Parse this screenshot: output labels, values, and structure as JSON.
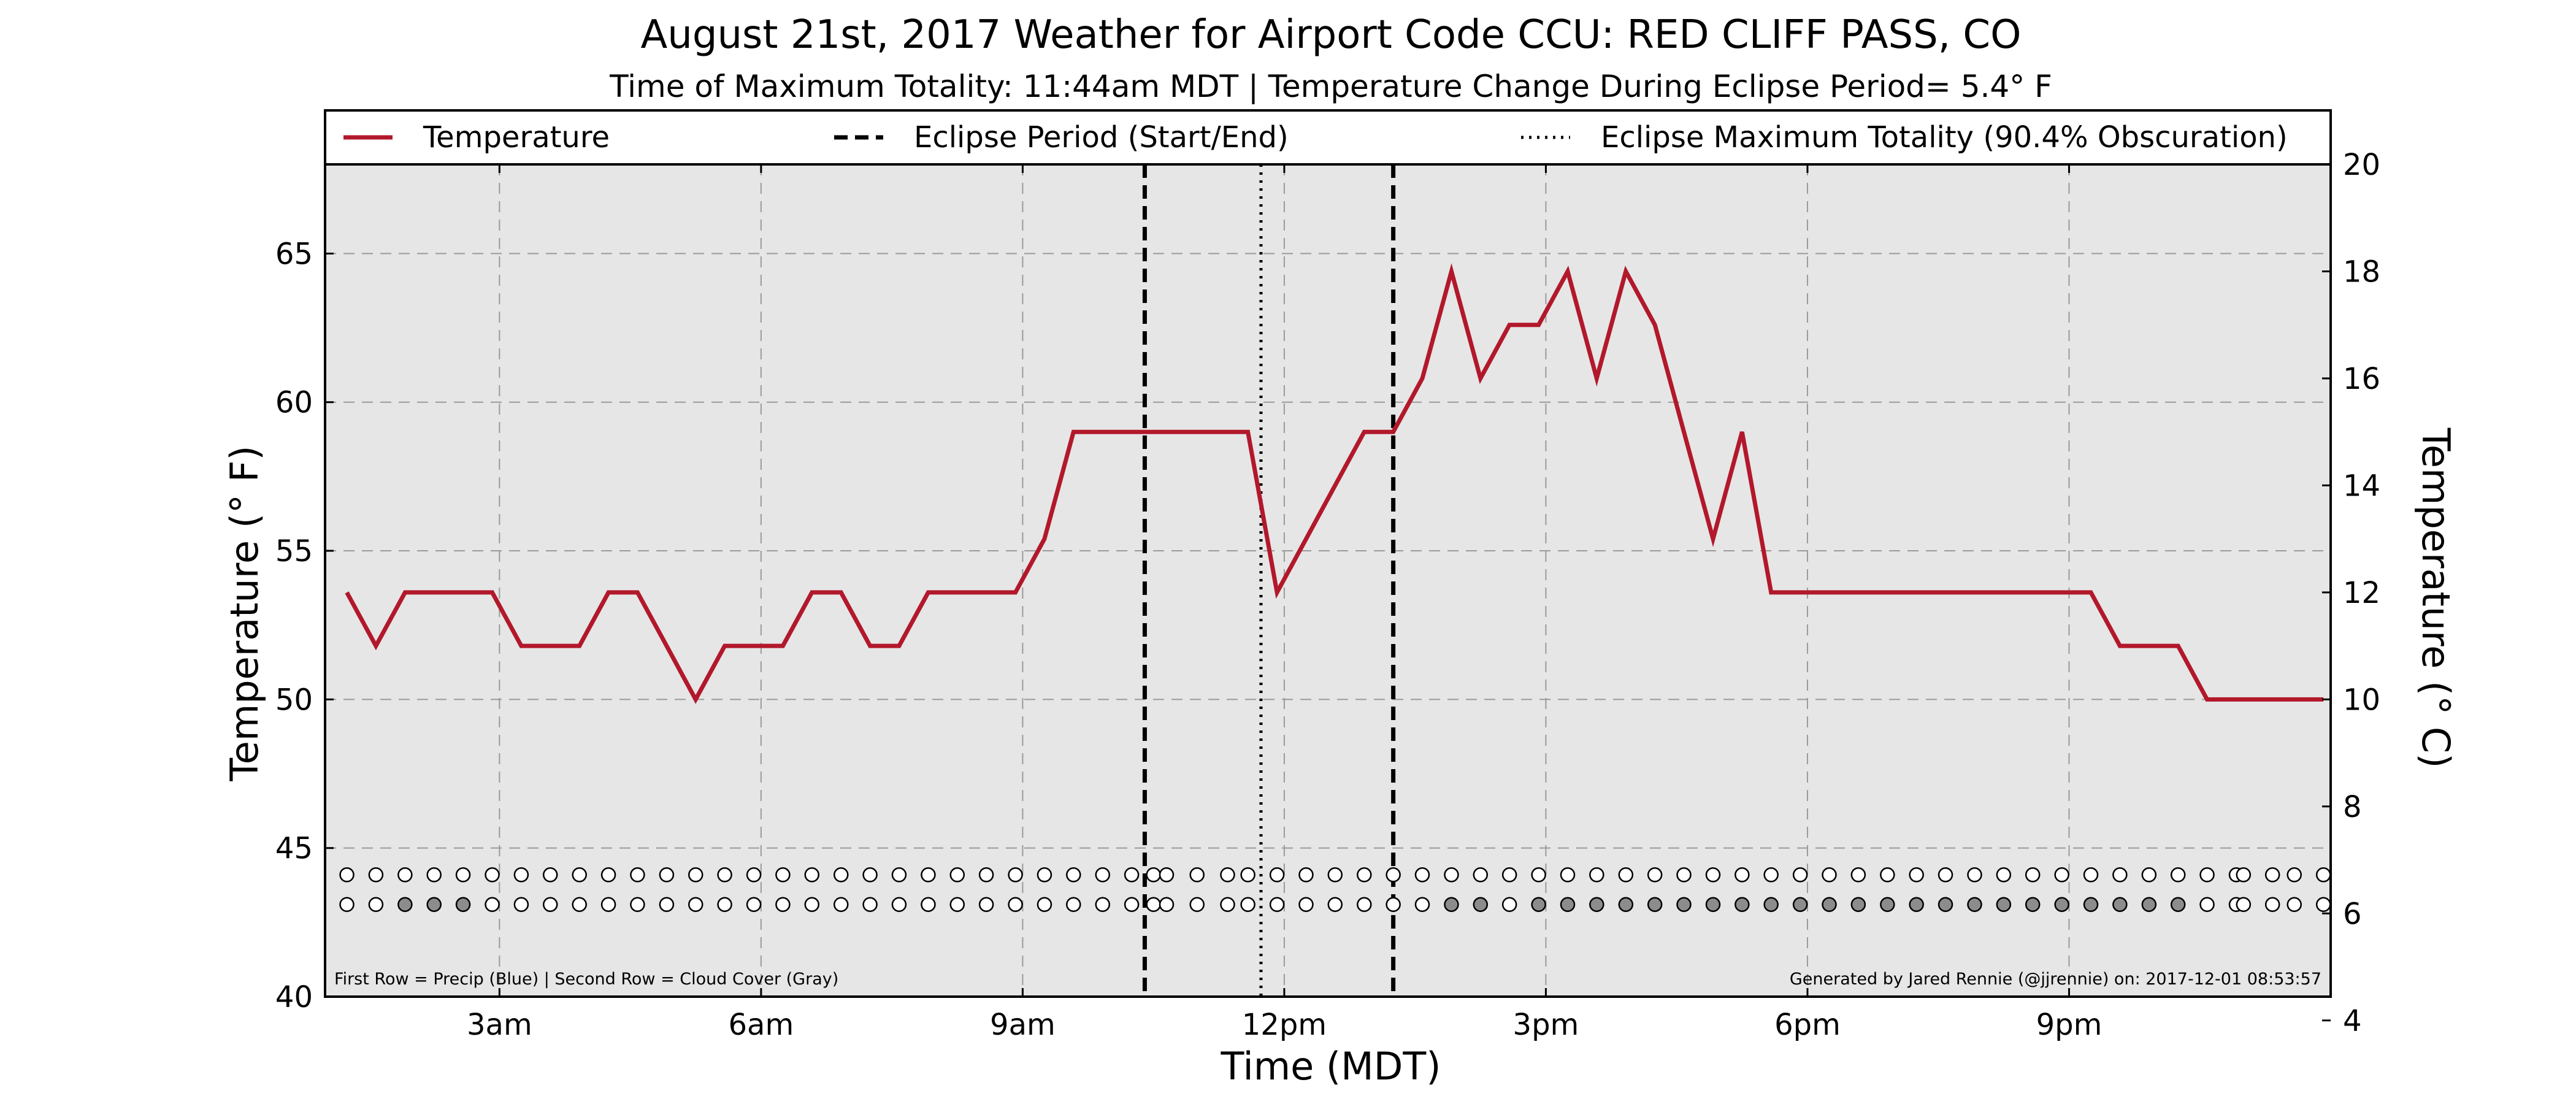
{
  "chart_data": {
    "type": "line",
    "title": "August 21st, 2017 Weather for Airport Code CCU: RED CLIFF PASS, CO",
    "subtitle": "Time of Maximum Totality: 11:44am MDT | Temperature Change During Eclipse Period= 5.4° F",
    "xlabel": "Time (MDT)",
    "ylabel": "Temperature (° F)",
    "ylabel_right": "Temperature (° C)",
    "xlim": [
      1.0,
      24.0
    ],
    "ylim": [
      40,
      68
    ],
    "ylim_right": [
      4.4444,
      20.0
    ],
    "x_ticks": [
      {
        "x": 3,
        "label": "3am"
      },
      {
        "x": 6,
        "label": "6am"
      },
      {
        "x": 9,
        "label": "9am"
      },
      {
        "x": 12,
        "label": "12pm"
      },
      {
        "x": 15,
        "label": "3pm"
      },
      {
        "x": 18,
        "label": "6pm"
      },
      {
        "x": 21,
        "label": "9pm"
      }
    ],
    "y_ticks": [
      40,
      45,
      50,
      55,
      60,
      65
    ],
    "y_ticks_right": [
      4,
      6,
      8,
      10,
      12,
      14,
      16,
      18,
      20
    ],
    "grid": true,
    "legend": {
      "placement": "top",
      "entries": [
        {
          "label": "Temperature",
          "style": "solid",
          "color": "#b2182b"
        },
        {
          "label": "Eclipse Period (Start/End)",
          "style": "dashed",
          "color": "#000000"
        },
        {
          "label": "Eclipse Maximum Totality (90.4% Obscuration)",
          "style": "dotted",
          "color": "#000000"
        }
      ]
    },
    "eclipse": {
      "start": 10.4,
      "max": 11.733,
      "end": 13.25
    },
    "series": [
      {
        "name": "Temperature",
        "color": "#b2182b",
        "x": [
          1.25,
          1.583,
          1.917,
          2.25,
          2.583,
          2.917,
          3.25,
          3.583,
          3.917,
          4.25,
          4.583,
          4.917,
          5.25,
          5.583,
          5.917,
          6.25,
          6.583,
          6.917,
          7.25,
          7.583,
          7.917,
          8.25,
          8.583,
          8.917,
          9.25,
          9.583,
          9.917,
          10.25,
          10.583,
          10.917,
          11.25,
          11.583,
          11.917,
          12.25,
          12.583,
          12.917,
          13.25,
          13.583,
          13.917,
          14.25,
          14.583,
          14.917,
          15.25,
          15.583,
          15.917,
          16.25,
          16.583,
          16.917,
          17.25,
          17.583,
          17.917,
          18.25,
          18.583,
          18.917,
          19.25,
          19.583,
          19.917,
          20.25,
          20.583,
          20.917,
          21.25,
          21.583,
          21.917,
          22.25,
          22.583,
          22.917,
          23.25,
          23.583,
          23.917
        ],
        "values": [
          53.6,
          51.8,
          53.6,
          53.6,
          53.6,
          53.6,
          51.8,
          51.8,
          51.8,
          53.6,
          53.6,
          51.8,
          50.0,
          51.8,
          51.8,
          51.8,
          53.6,
          53.6,
          51.8,
          51.8,
          53.6,
          53.6,
          53.6,
          53.6,
          55.4,
          59.0,
          59.0,
          59.0,
          59.0,
          59.0,
          59.0,
          59.0,
          53.6,
          55.4,
          57.2,
          59.0,
          59.0,
          60.8,
          64.4,
          60.8,
          62.6,
          62.6,
          64.4,
          60.8,
          64.4,
          62.6,
          59.0,
          55.4,
          59.0,
          53.6,
          53.6,
          53.6,
          53.6,
          53.6,
          53.6,
          53.6,
          53.6,
          53.6,
          53.6,
          53.6,
          53.6,
          51.8,
          51.8,
          51.8,
          50.0,
          50.0,
          50.0,
          50.0,
          50.0
        ]
      }
    ],
    "indicator_rows": {
      "x": [
        1.25,
        1.583,
        1.917,
        2.25,
        2.583,
        2.917,
        3.25,
        3.583,
        3.917,
        4.25,
        4.583,
        4.917,
        5.25,
        5.583,
        5.917,
        6.25,
        6.583,
        6.917,
        7.25,
        7.583,
        7.917,
        8.25,
        8.583,
        8.917,
        9.25,
        9.583,
        9.917,
        10.25,
        10.5,
        10.65,
        11.0,
        11.35,
        11.583,
        11.917,
        12.25,
        12.583,
        12.917,
        13.25,
        13.583,
        13.917,
        14.25,
        14.583,
        14.917,
        15.25,
        15.583,
        15.917,
        16.25,
        16.583,
        16.917,
        17.25,
        17.583,
        17.917,
        18.25,
        18.583,
        18.917,
        19.25,
        19.583,
        19.917,
        20.25,
        20.583,
        20.917,
        21.25,
        21.583,
        21.917,
        22.25,
        22.583,
        22.917,
        23.0,
        23.333,
        23.583,
        23.917
      ],
      "precip": [
        0,
        0,
        0,
        0,
        0,
        0,
        0,
        0,
        0,
        0,
        0,
        0,
        0,
        0,
        0,
        0,
        0,
        0,
        0,
        0,
        0,
        0,
        0,
        0,
        0,
        0,
        0,
        0,
        0,
        0,
        0,
        0,
        0,
        0,
        0,
        0,
        0,
        0,
        0,
        0,
        0,
        0,
        0,
        0,
        0,
        0,
        0,
        0,
        0,
        0,
        0,
        0,
        0,
        0,
        0,
        0,
        0,
        0,
        0,
        0,
        0,
        0,
        0,
        0,
        0,
        0,
        0,
        0,
        0,
        0,
        0
      ],
      "cloud": [
        0,
        0,
        1,
        1,
        1,
        0,
        0,
        0,
        0,
        0,
        0,
        0,
        0,
        0,
        0,
        0,
        0,
        0,
        0,
        0,
        0,
        0,
        0,
        0,
        0,
        0,
        0,
        0,
        0,
        0,
        0,
        0,
        0,
        0,
        0,
        0,
        0,
        0,
        0,
        1,
        1,
        0,
        1,
        1,
        1,
        1,
        1,
        1,
        1,
        1,
        1,
        1,
        1,
        1,
        1,
        1,
        1,
        1,
        1,
        1,
        1,
        1,
        1,
        1,
        1,
        0,
        0,
        0,
        0,
        0,
        0
      ]
    },
    "footnote_left": "First Row = Precip (Blue) | Second Row = Cloud Cover (Gray)",
    "footnote_right": "Generated by Jared Rennie (@jjrennie) on: 2017-12-01 08:53:57"
  }
}
